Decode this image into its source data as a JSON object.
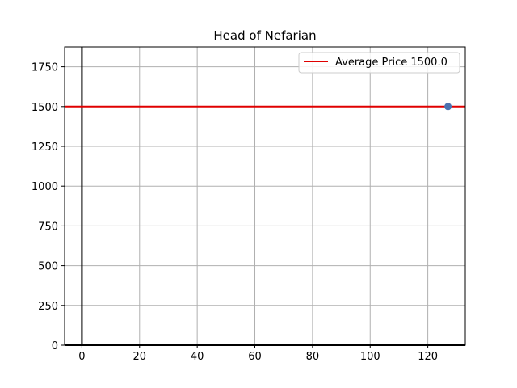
{
  "chart_data": {
    "type": "scatter",
    "title": "Head of Nefarian",
    "xlabel": "",
    "ylabel": "",
    "xlim": [
      -6,
      133
    ],
    "ylim": [
      0,
      1875
    ],
    "xticks": [
      0,
      20,
      40,
      60,
      80,
      100,
      120
    ],
    "yticks": [
      0,
      250,
      500,
      750,
      1000,
      1250,
      1500,
      1750
    ],
    "grid": true,
    "legend_position": "top-right",
    "points": [
      {
        "x": 127,
        "y": 1500
      }
    ],
    "point_color": "#4c72b0",
    "average_line": {
      "label": "Average Price 1500.0",
      "y": 1500,
      "color": "#e00000"
    },
    "vline_x": 0
  }
}
